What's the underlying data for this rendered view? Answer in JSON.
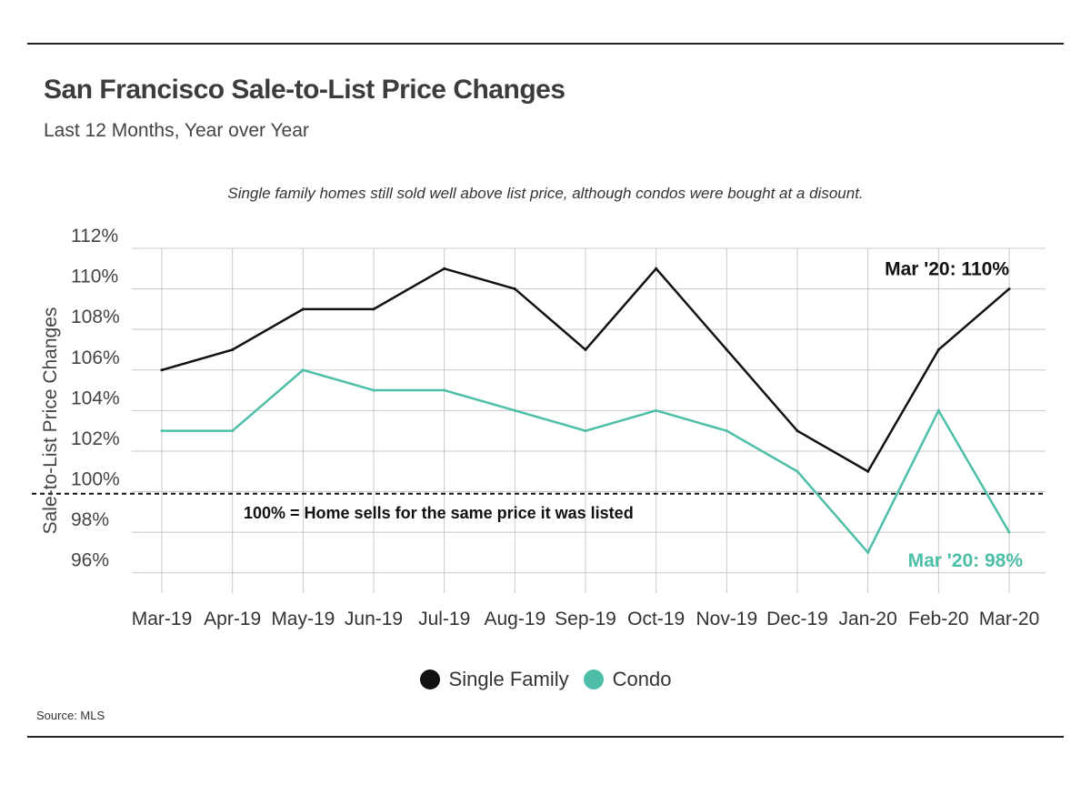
{
  "header": {
    "title": "San Francisco Sale-to-List Price Changes",
    "subtitle": "Last 12 Months, Year over Year"
  },
  "annotation": "Single family homes still sold well above list price, although condos were bought at a disount.",
  "source": "Source:  MLS",
  "reference_line_label": "100% = Home sells for the same price it was listed",
  "callouts": {
    "single_family": "Mar '20: 110%",
    "condo": "Mar '20: 98%"
  },
  "colors": {
    "single_family": "#111111",
    "condo": "#4dbfa8",
    "grid": "#c8c8c8"
  },
  "chart_data": {
    "type": "line",
    "title": "San Francisco Sale-to-List Price Changes",
    "subtitle": "Last 12 Months, Year over Year",
    "xlabel": "",
    "ylabel": "Sale-to-List Price Changes",
    "x": [
      "Mar-19",
      "Apr-19",
      "May-19",
      "Jun-19",
      "Jul-19",
      "Aug-19",
      "Sep-19",
      "Oct-19",
      "Nov-19",
      "Dec-19",
      "Jan-20",
      "Feb-20",
      "Mar-20"
    ],
    "ylim": [
      95,
      112
    ],
    "yticks": [
      96,
      98,
      100,
      102,
      104,
      106,
      108,
      110,
      112
    ],
    "ytick_labels": [
      "96%",
      "98%",
      "100%",
      "102%",
      "104%",
      "106%",
      "108%",
      "110%",
      "112%"
    ],
    "reference_line": 99.9,
    "grid": true,
    "legend_position": "bottom",
    "series": [
      {
        "name": "Single Family",
        "values": [
          106,
          107,
          109,
          109,
          111,
          110,
          107,
          111,
          107,
          103,
          101,
          107,
          110
        ]
      },
      {
        "name": "Condo",
        "values": [
          103,
          103,
          106,
          105,
          105,
          104,
          103,
          104,
          103,
          101,
          97,
          104,
          98
        ]
      }
    ]
  }
}
